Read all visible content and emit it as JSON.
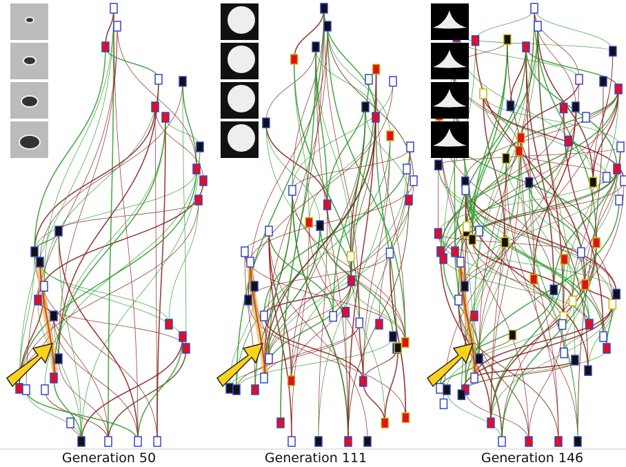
{
  "panels": [
    {
      "label": "Generation 50"
    },
    {
      "label": "Generation 111"
    },
    {
      "label": "Generation 146"
    }
  ]
}
